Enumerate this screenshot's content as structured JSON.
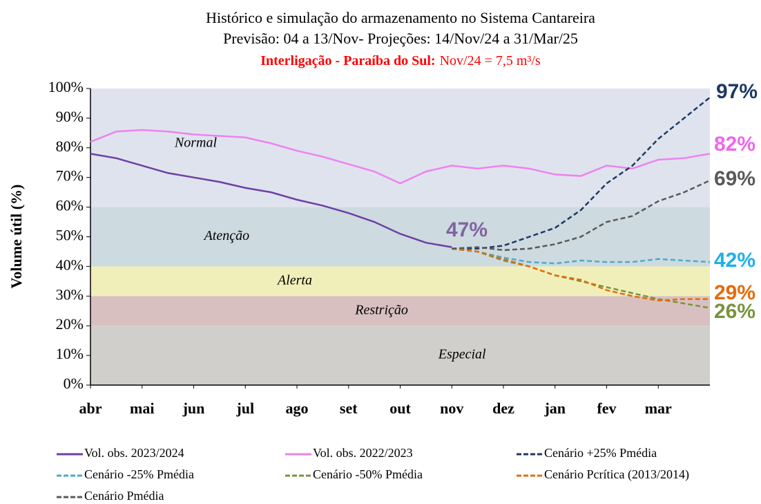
{
  "chart_data": {
    "type": "line",
    "title": "Histórico e simulação do armazenamento no Sistema Cantareira",
    "subtitle": "Previsão: 04 a 13/Nov-  Projeções: 14/Nov/24 a 31/Mar/25",
    "note_bold": "Interligação - Paraíba do Sul:",
    "note": "Nov/24 = 7,5 m³/s",
    "y_label": "Volume útil (%)",
    "categories": [
      "abr",
      null,
      "mai",
      null,
      "jun",
      null,
      "jul",
      null,
      "ago",
      null,
      "set",
      null,
      "out",
      null,
      "nov",
      null,
      "dez",
      null,
      "jan",
      null,
      "fev",
      null,
      "mar",
      null,
      null
    ],
    "ylim": [
      0,
      100
    ],
    "yticks": [
      {
        "value": 0,
        "label": "0%"
      },
      {
        "value": 10,
        "label": "10%"
      },
      {
        "value": 20,
        "label": "20%"
      },
      {
        "value": 30,
        "label": "30%"
      },
      {
        "value": 40,
        "label": "40%"
      },
      {
        "value": 50,
        "label": "50%"
      },
      {
        "value": 60,
        "label": "60%"
      },
      {
        "value": 70,
        "label": "70%"
      },
      {
        "value": 80,
        "label": "80%"
      },
      {
        "value": 90,
        "label": "90%"
      },
      {
        "value": 100,
        "label": "100%"
      }
    ],
    "zones": [
      {
        "label": "Normal",
        "from": 60,
        "to": 100,
        "color": "#dfe3ee"
      },
      {
        "label": "Atenção",
        "from": 40,
        "to": 60,
        "color": "#cddae0"
      },
      {
        "label": "Alerta",
        "from": 30,
        "to": 40,
        "color": "#f1efb9"
      },
      {
        "label": "Restrição",
        "from": 20,
        "to": 30,
        "color": "#d9c0c0"
      },
      {
        "label": "Especial",
        "from": 0,
        "to": 20,
        "color": "#d1cfcb"
      }
    ],
    "series": [
      {
        "name": "Vol. obs. 2023/2024",
        "color": "#6f3fa3",
        "dashed": false,
        "values": [
          78,
          76.5,
          74,
          71.5,
          70,
          68.5,
          66.5,
          65,
          62.5,
          60.5,
          58,
          55,
          51,
          48,
          46.5,
          null,
          null,
          null,
          null,
          null,
          null,
          null,
          null,
          null,
          null
        ]
      },
      {
        "name": "Vol. obs. 2022/2023",
        "color": "#ee82ee",
        "dashed": false,
        "values": [
          82,
          85.5,
          86,
          85.5,
          84.5,
          84,
          83.5,
          81.5,
          79,
          77,
          74.5,
          72,
          68,
          72,
          74,
          73,
          74,
          73,
          71,
          70.5,
          74,
          73,
          76,
          76.5,
          78
        ]
      },
      {
        "name": "Cenário +25% Pmédia",
        "color": "#1f3864",
        "dashed": true,
        "values": [
          null,
          null,
          null,
          null,
          null,
          null,
          null,
          null,
          null,
          null,
          null,
          null,
          null,
          null,
          46,
          46,
          47,
          50,
          53,
          59,
          68,
          74,
          83,
          90,
          97
        ]
      },
      {
        "name": "Cenário -25% Pmédia",
        "color": "#4bacc6",
        "dashed": true,
        "values": [
          null,
          null,
          null,
          null,
          null,
          null,
          null,
          null,
          null,
          null,
          null,
          null,
          null,
          null,
          46,
          45,
          43,
          41.5,
          41,
          42,
          41.5,
          41.5,
          42.5,
          42,
          41.5
        ]
      },
      {
        "name": "Cenário -50% Pmédia",
        "color": "#77933c",
        "dashed": true,
        "values": [
          null,
          null,
          null,
          null,
          null,
          null,
          null,
          null,
          null,
          null,
          null,
          null,
          null,
          null,
          46,
          45,
          42,
          40,
          37,
          35,
          33,
          31,
          29,
          27.5,
          26
        ]
      },
      {
        "name": "Cenário Pcrítica (2013/2014)",
        "color": "#e46c0a",
        "dashed": true,
        "values": [
          null,
          null,
          null,
          null,
          null,
          null,
          null,
          null,
          null,
          null,
          null,
          null,
          null,
          null,
          46,
          45,
          42.5,
          40,
          37,
          35.5,
          32,
          30,
          28.5,
          29,
          29
        ]
      },
      {
        "name": "Cenário Pmédia",
        "color": "#595959",
        "dashed": true,
        "values": [
          null,
          null,
          null,
          null,
          null,
          null,
          null,
          null,
          null,
          null,
          null,
          null,
          null,
          null,
          46,
          46.5,
          45.5,
          46,
          47.5,
          50,
          55,
          57,
          62,
          65,
          69
        ]
      }
    ],
    "annotations": [
      {
        "text": "47%",
        "color": "#8064a2"
      },
      {
        "text": "97%",
        "color": "#1f3864"
      },
      {
        "text": "82%",
        "color": "#ee66ee"
      },
      {
        "text": "69%",
        "color": "#595959"
      },
      {
        "text": "42%",
        "color": "#1fb0e8"
      },
      {
        "text": "29%",
        "color": "#e46c0a"
      },
      {
        "text": "26%",
        "color": "#77933c"
      }
    ]
  }
}
